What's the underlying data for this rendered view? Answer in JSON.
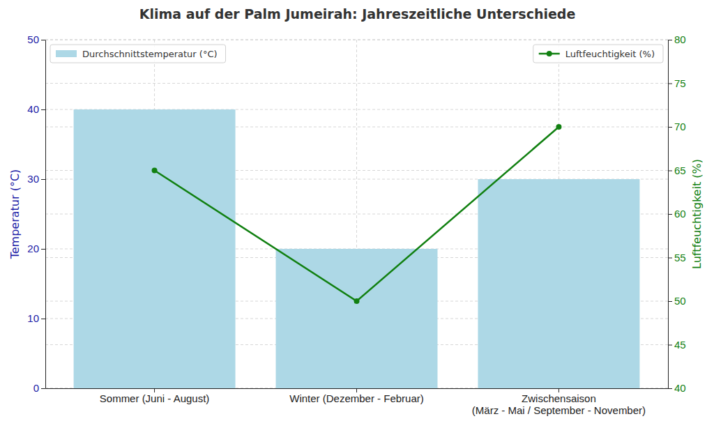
{
  "chart_data": {
    "type": "bar",
    "title": "Klima auf der Palm Jumeirah: Jahreszeitliche Unterschiede",
    "categories": [
      "Sommer (Juni - August)",
      "Winter (Dezember - Februar)",
      "Zwischensaison\n(März - Mai / September - November)"
    ],
    "series": [
      {
        "name": "Durchschnittstemperatur (°C)",
        "type": "bar",
        "color": "#add8e6",
        "legend": "upper left",
        "values": [
          40,
          20,
          30
        ]
      },
      {
        "name": "Luftfeuchtigkeit (%)",
        "type": "line",
        "color": "#118011",
        "marker": "circle",
        "axis": "y2",
        "legend": "upper right",
        "values": [
          65,
          50,
          70
        ]
      }
    ],
    "ylabel": "Temperatur (°C)",
    "y2label": "Luftfeuchtigkeit (%)",
    "ylim": [
      0,
      50
    ],
    "yticks": [
      0,
      10,
      20,
      30,
      40,
      50
    ],
    "y2lim": [
      40,
      80
    ],
    "y2ticks": [
      40,
      45,
      50,
      55,
      60,
      65,
      70,
      75,
      80
    ],
    "grid": true
  }
}
